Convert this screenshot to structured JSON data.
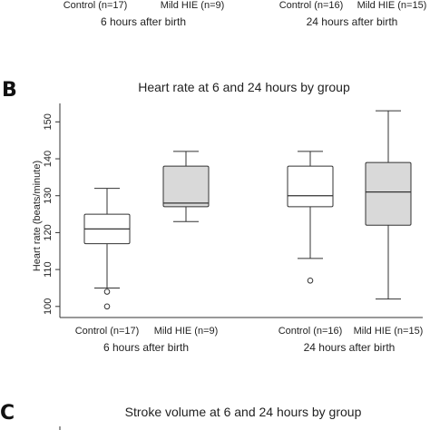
{
  "top_fragment": {
    "categories": [
      "Control (n=17)",
      "Mild HIE (n=9)",
      "Control (n=16)",
      "Mild HIE (n=15)"
    ],
    "groups": [
      "6 hours after birth",
      "24 hours after birth"
    ]
  },
  "panel_b": {
    "letter": "B"
  },
  "panel_c": {
    "letter": "C",
    "title": "Stroke volume at 6 and 24 hours by group"
  },
  "chart_data": {
    "type": "box",
    "title": "Heart rate at 6 and 24 hours by group",
    "ylabel": "Heart rate (beats/minute)",
    "ylim": [
      97,
      155
    ],
    "yticks": [
      100,
      110,
      120,
      130,
      140,
      150
    ],
    "grid": false,
    "categories": [
      "Control (n=17)",
      "Mild HIE (n=9)",
      "Control (n=16)",
      "Mild HIE (n=15)"
    ],
    "groups": [
      "6 hours after birth",
      "24 hours after birth"
    ],
    "colors": {
      "control": "#ffffff",
      "mild_hie": "#d9d9d9",
      "stroke": "#333333"
    },
    "boxes": [
      {
        "category": "Control (n=17)",
        "min": 105,
        "q1": 117,
        "median": 121,
        "q3": 125,
        "max": 132,
        "outliers": [
          104,
          100
        ]
      },
      {
        "category": "Mild HIE (n=9)",
        "min": 123,
        "q1": 127,
        "median": 128,
        "q3": 138,
        "max": 142,
        "outliers": []
      },
      {
        "category": "Control (n=16)",
        "min": 113,
        "q1": 127,
        "median": 130,
        "q3": 138,
        "max": 142,
        "outliers": [
          107
        ]
      },
      {
        "category": "Mild HIE (n=15)",
        "min": 102,
        "q1": 122,
        "median": 131,
        "q3": 139,
        "max": 153,
        "outliers": []
      }
    ]
  }
}
